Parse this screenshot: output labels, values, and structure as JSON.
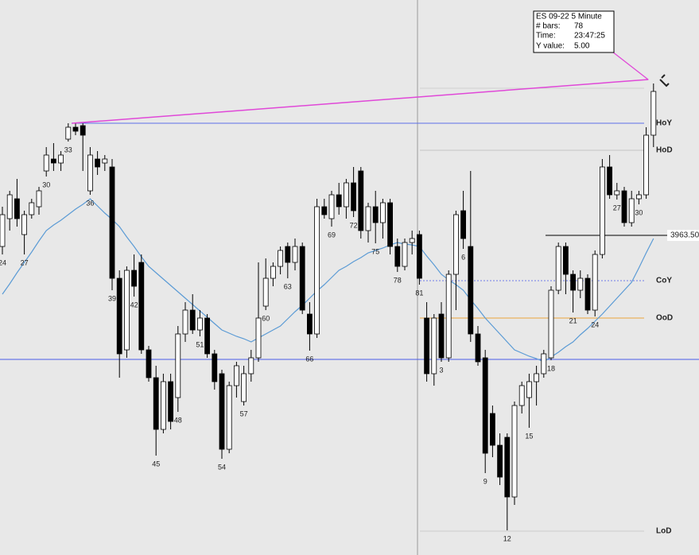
{
  "chart_data": {
    "type": "candlestick",
    "categories": [
      "24",
      null,
      null,
      "27",
      null,
      null,
      "30",
      null,
      null,
      "33",
      null,
      null,
      "36",
      null,
      null,
      "39",
      null,
      null,
      "42",
      null,
      null,
      "45",
      null,
      null,
      "48",
      null,
      null,
      "51",
      null,
      null,
      "54",
      null,
      null,
      "57",
      null,
      null,
      "60",
      null,
      null,
      "63",
      null,
      null,
      "66",
      null,
      null,
      "69",
      null,
      null,
      "72",
      null,
      null,
      "75",
      null,
      null,
      "78",
      null,
      null,
      "81",
      null,
      null,
      "3",
      null,
      null,
      "6",
      null,
      null,
      "9",
      null,
      null,
      "12",
      null,
      null,
      "15",
      null,
      null,
      "18",
      null,
      null,
      "21",
      null,
      null,
      "24",
      null,
      null,
      "27",
      null,
      null,
      "30",
      null,
      null
    ],
    "open": [
      3962.1,
      3965.6,
      3968.1,
      3963.6,
      3966.1,
      3967.1,
      3971.6,
      3973.1,
      3972.6,
      3975.6,
      3977.1,
      3977.3,
      3969.1,
      3973.1,
      3972.6,
      3972.1,
      3958.1,
      3949.1,
      3959.1,
      3960.1,
      3949.1,
      3945.6,
      3939.1,
      3945.1,
      3943.1,
      3951.1,
      3954.1,
      3951.6,
      3953.1,
      3948.6,
      3946.1,
      3936.6,
      3944.6,
      3942.6,
      3946.1,
      3948.1,
      3954.6,
      3958.1,
      3959.6,
      3962.1,
      3960.1,
      3962.1,
      3953.6,
      3951.1,
      3967.1,
      3965.6,
      3968.6,
      3967.1,
      3970.1,
      3971.6,
      3964.1,
      3967.1,
      3965.1,
      3967.6,
      3962.1,
      3959.6,
      3962.6,
      3963.6,
      3953.1,
      3946.1,
      3953.6,
      3948.1,
      3958.6,
      3966.6,
      3962.1,
      3951.1,
      3948.1,
      3941.1,
      3937.1,
      3938.1,
      3930.6,
      3942.1,
      3943.1,
      3945.1,
      3946.1,
      3948.1,
      3956.6,
      3962.1,
      3958.6,
      3956.6,
      3958.1,
      3954.1,
      3961.1,
      3972.1,
      3968.6,
      3969.1,
      3965.1,
      3968.1,
      3968.6,
      3976.1
    ],
    "high": [
      3967.1,
      3969.1,
      3970.6,
      3966.6,
      3968.1,
      3969.6,
      3974.6,
      3975.1,
      3974.1,
      3977.6,
      3977.6,
      3977.6,
      3974.6,
      3974.1,
      3973.6,
      3973.1,
      3959.1,
      3959.6,
      3961.1,
      3961.1,
      3949.6,
      3947.1,
      3946.1,
      3946.1,
      3952.1,
      3955.1,
      3956.1,
      3954.1,
      3953.6,
      3949.1,
      3946.6,
      3945.1,
      3947.6,
      3947.1,
      3949.1,
      3960.1,
      3960.6,
      3960.1,
      3962.1,
      3962.6,
      3963.1,
      3962.6,
      3955.1,
      3968.1,
      3968.1,
      3969.1,
      3970.1,
      3970.6,
      3972.1,
      3972.1,
      3967.6,
      3969.1,
      3968.1,
      3968.1,
      3963.1,
      3963.1,
      3964.1,
      3964.1,
      3955.1,
      3953.6,
      3955.1,
      3959.1,
      3966.6,
      3969.1,
      3971.6,
      3952.1,
      3949.1,
      3942.1,
      3938.6,
      3938.6,
      3942.6,
      3945.1,
      3946.1,
      3947.1,
      3949.1,
      3957.1,
      3962.6,
      3962.6,
      3959.1,
      3959.1,
      3958.6,
      3961.6,
      3973.1,
      3973.6,
      3970.1,
      3969.6,
      3969.1,
      3969.1,
      3977.1,
      3982.6
    ],
    "low": [
      3961.1,
      3964.1,
      3964.6,
      3961.1,
      3965.6,
      3966.1,
      3970.9,
      3971.6,
      3971.6,
      3975.3,
      3976.1,
      3971.6,
      3968.6,
      3971.1,
      3971.6,
      3956.6,
      3945.6,
      3948.1,
      3955.8,
      3948.6,
      3945.1,
      3935.8,
      3938.6,
      3939.1,
      3941.3,
      3950.1,
      3951.1,
      3950.8,
      3948.1,
      3944.1,
      3935.4,
      3936.1,
      3943.1,
      3942.1,
      3945.1,
      3947.6,
      3954.1,
      3957.1,
      3958.6,
      3958.1,
      3959.1,
      3953.6,
      3949.0,
      3950.6,
      3965.6,
      3964.6,
      3966.1,
      3965.6,
      3965.8,
      3963.1,
      3962.6,
      3962.5,
      3963.1,
      3961.1,
      3958.9,
      3959.1,
      3961.1,
      3957.3,
      3945.1,
      3944.6,
      3947.6,
      3947.6,
      3954.1,
      3961.8,
      3950.1,
      3947.1,
      3933.6,
      3935.6,
      3932.1,
      3926.4,
      3929.6,
      3941.1,
      3939.3,
      3942.1,
      3945.6,
      3947.8,
      3956.1,
      3956.1,
      3953.8,
      3955.6,
      3953.6,
      3953.3,
      3960.6,
      3968.1,
      3968.0,
      3964.6,
      3964.6,
      3967.4,
      3968.1,
      3974.6
    ],
    "close": [
      3966.1,
      3968.6,
      3965.6,
      3966.1,
      3967.6,
      3969.1,
      3973.6,
      3972.6,
      3973.6,
      3977.1,
      3976.6,
      3976.1,
      3973.6,
      3972.1,
      3973.1,
      3958.1,
      3948.6,
      3959.1,
      3957.1,
      3949.1,
      3945.6,
      3939.1,
      3945.1,
      3940.1,
      3951.1,
      3954.1,
      3951.6,
      3953.1,
      3948.6,
      3945.1,
      3936.6,
      3944.6,
      3947.1,
      3946.1,
      3948.1,
      3953.1,
      3958.1,
      3959.6,
      3961.6,
      3960.1,
      3962.1,
      3954.1,
      3951.1,
      3967.1,
      3966.1,
      3968.6,
      3967.1,
      3970.1,
      3966.6,
      3964.1,
      3967.1,
      3965.1,
      3967.6,
      3962.1,
      3959.6,
      3962.6,
      3963.1,
      3958.1,
      3946.1,
      3953.1,
      3948.1,
      3958.6,
      3966.1,
      3963.1,
      3951.1,
      3947.6,
      3936.1,
      3937.1,
      3933.1,
      3930.6,
      3942.1,
      3944.6,
      3945.1,
      3946.1,
      3948.6,
      3956.6,
      3962.1,
      3958.6,
      3956.6,
      3958.1,
      3954.1,
      3961.1,
      3972.1,
      3968.6,
      3969.1,
      3965.1,
      3968.1,
      3968.6,
      3976.1,
      3981.6
    ],
    "up_color": "#ffffff",
    "down_color": "#000000",
    "ma": {
      "color": "#5b9bd5",
      "values": [
        3956.1,
        3957.4,
        3958.8,
        3960.1,
        3961.4,
        3962.8,
        3964.1,
        3964.8,
        3965.4,
        3966.1,
        3966.8,
        3967.4,
        3968.1,
        3967.2,
        3966.3,
        3965.5,
        3964.6,
        3963.3,
        3962.1,
        3960.8,
        3959.6,
        3958.8,
        3958.0,
        3957.2,
        3956.4,
        3955.6,
        3954.8,
        3954.0,
        3953.2,
        3952.4,
        3951.6,
        3951.2,
        3950.8,
        3950.5,
        3950.1,
        3950.6,
        3951.1,
        3951.6,
        3952.1,
        3953.0,
        3953.9,
        3954.7,
        3955.6,
        3956.5,
        3957.3,
        3958.2,
        3959.1,
        3959.6,
        3960.2,
        3960.7,
        3961.3,
        3961.6,
        3961.9,
        3962.3,
        3962.6,
        3962.4,
        3962.3,
        3962.1,
        3960.9,
        3959.8,
        3958.6,
        3957.9,
        3957.3,
        3956.6,
        3955.4,
        3954.3,
        3953.1,
        3952.1,
        3951.1,
        3950.1,
        3949.1,
        3948.7,
        3948.3,
        3948.0,
        3947.6,
        3948.2,
        3948.8,
        3949.5,
        3950.1,
        3951.0,
        3951.8,
        3952.7,
        3953.6,
        3954.6,
        3955.6,
        3956.6,
        3957.6,
        3959.4,
        3961.3,
        3963.1
      ]
    },
    "ylim": [
      3923.3,
      3993.1
    ],
    "levels": [
      {
        "value": 3982.0,
        "color": "#cfcfcf"
      },
      {
        "value": 3977.6,
        "color": "#5b6ee8",
        "label": "HoY"
      },
      {
        "value": 3974.2,
        "color": "#c4c4c4",
        "label": "HoD"
      },
      {
        "value": 3963.5,
        "color": "#000000",
        "label": "3963.50"
      },
      {
        "value": 3957.8,
        "color": "#6f7de8",
        "label": "CoY",
        "dotted": true
      },
      {
        "value": 3953.1,
        "color": "#eaa43a",
        "label": "OoD"
      },
      {
        "value": 3947.9,
        "color": "#4a5be8"
      },
      {
        "value": 3926.3,
        "color": "#cdcdcd",
        "label": "LoD"
      }
    ],
    "trendline": {
      "x": [
        9.5,
        88.3
      ],
      "values": [
        3977.6,
        3983.1
      ],
      "color": "#e048d8"
    },
    "tooltip": {
      "title": "ES 09-22 5 Minute",
      "rows": [
        [
          "# bars:",
          "78"
        ],
        [
          "Time:",
          "23:47:25"
        ],
        [
          "Y value:",
          "5.00"
        ]
      ]
    }
  }
}
